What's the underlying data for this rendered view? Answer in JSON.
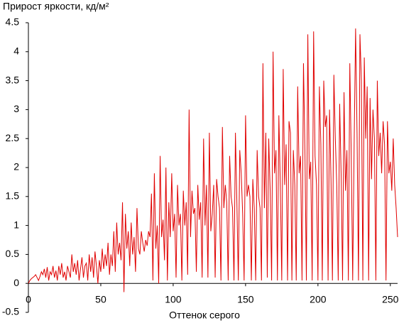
{
  "chart_data": {
    "type": "line",
    "title": "Прирост яркости, кд/м²",
    "x_label": "Оттенок серого",
    "color": "#e00000",
    "x": [
      0,
      1,
      2,
      3,
      4,
      5,
      6,
      7,
      8,
      9,
      10,
      11,
      12,
      13,
      14,
      15,
      16,
      17,
      18,
      19,
      20,
      21,
      22,
      23,
      24,
      25,
      26,
      27,
      28,
      29,
      30,
      31,
      32,
      33,
      34,
      35,
      36,
      37,
      38,
      39,
      40,
      41,
      42,
      43,
      44,
      45,
      46,
      47,
      48,
      49,
      50,
      51,
      52,
      53,
      54,
      55,
      56,
      57,
      58,
      59,
      60,
      61,
      62,
      63,
      64,
      65,
      66,
      67,
      68,
      69,
      70,
      71,
      72,
      73,
      74,
      75,
      76,
      77,
      78,
      79,
      80,
      81,
      82,
      83,
      84,
      85,
      86,
      87,
      88,
      89,
      90,
      91,
      92,
      93,
      94,
      95,
      96,
      97,
      98,
      99,
      100,
      101,
      102,
      103,
      104,
      105,
      106,
      107,
      108,
      109,
      110,
      111,
      112,
      113,
      114,
      115,
      116,
      117,
      118,
      119,
      120,
      121,
      122,
      123,
      124,
      125,
      126,
      127,
      128,
      129,
      130,
      131,
      132,
      133,
      134,
      135,
      136,
      137,
      138,
      139,
      140,
      141,
      142,
      143,
      144,
      145,
      146,
      147,
      148,
      149,
      150,
      151,
      152,
      153,
      154,
      155,
      156,
      157,
      158,
      159,
      160,
      161,
      162,
      163,
      164,
      165,
      166,
      167,
      168,
      169,
      170,
      171,
      172,
      173,
      174,
      175,
      176,
      177,
      178,
      179,
      180,
      181,
      182,
      183,
      184,
      185,
      186,
      187,
      188,
      189,
      190,
      191,
      192,
      193,
      194,
      195,
      196,
      197,
      198,
      199,
      200,
      201,
      202,
      203,
      204,
      205,
      206,
      207,
      208,
      209,
      210,
      211,
      212,
      213,
      214,
      215,
      216,
      217,
      218,
      219,
      220,
      221,
      222,
      223,
      224,
      225,
      226,
      227,
      228,
      229,
      230,
      231,
      232,
      233,
      234,
      235,
      236,
      237,
      238,
      239,
      240,
      241,
      242,
      243,
      244,
      245,
      246,
      247,
      248,
      249,
      250,
      251,
      252,
      253,
      254,
      255
    ],
    "values": [
      0,
      0.05,
      0.08,
      0.1,
      0.12,
      0.15,
      0.1,
      0.05,
      0.12,
      0.2,
      0.15,
      0.25,
      0.1,
      0.28,
      0.05,
      0.2,
      0.15,
      0.3,
      0.1,
      0.22,
      0.05,
      0.3,
      0.15,
      0.35,
      0.1,
      0.2,
      0.05,
      0.3,
      0.2,
      0.1,
      0.5,
      0.2,
      0.35,
      0.15,
      0.4,
      0.05,
      0.25,
      0.45,
      0.1,
      0.3,
      0.35,
      0.05,
      0.5,
      0.2,
      0.45,
      0.1,
      0.55,
      0.3,
      0,
      0.4,
      0.2,
      0.6,
      0.25,
      0.5,
      0.3,
      0.7,
      0.15,
      0.5,
      0.3,
      0.9,
      0.2,
      1.05,
      0.5,
      0.7,
      0.4,
      1.4,
      -0.15,
      1.2,
      0.6,
      0.9,
      0.3,
      1.05,
      0.5,
      0.8,
      0.2,
      1.3,
      0.6,
      0.5,
      0.9,
      0.7,
      0.55,
      0.75,
      0.65,
      0.9,
      0.8,
      1.55,
      0.05,
      1.9,
      0.6,
      1.0,
      0,
      2.2,
      0.8,
      1.1,
      0.4,
      2.0,
      0.05,
      1.4,
      0.8,
      1.9,
      0.9,
      1.2,
      0.1,
      1.7,
      1.0,
      1.2,
      0.05,
      1.6,
      1.0,
      1.4,
      0.15,
      3.0,
      0.8,
      1.6,
      1.2,
      1.3,
      0.2,
      1.7,
      1.1,
      1.4,
      0.1,
      2.5,
      1.0,
      1.7,
      0.1,
      2.6,
      0.9,
      1.2,
      1.7,
      0.1,
      1.8,
      1.5,
      1.3,
      0.05,
      2.7,
      1.3,
      1.7,
      1.4,
      0.05,
      2.2,
      1.5,
      1.3,
      0.05,
      2.6,
      1.4,
      0.05,
      2.3,
      1.9,
      1.2,
      0.05,
      2.9,
      1.5,
      1.7,
      1.5,
      0.05,
      1.8,
      1.3,
      0.05,
      2.3,
      1.5,
      1.3,
      0.05,
      3.8,
      1.3,
      2.6,
      0.1,
      2.5,
      1.6,
      0.05,
      4.0,
      1.9,
      2.3,
      0.05,
      2.9,
      1.7,
      0.05,
      3.7,
      1.7,
      2.4,
      0.05,
      2.8,
      2.6,
      0.05,
      2.3,
      1.7,
      0.05,
      3.4,
      1.9,
      2.2,
      0.05,
      3.8,
      2.3,
      0.05,
      4.3,
      1.8,
      2.1,
      0.05,
      4.35,
      2.2,
      1.7,
      0.05,
      3.4,
      2.4,
      0.05,
      3.5,
      2.7,
      2.9,
      0.05,
      3.0,
      1.8,
      0.05,
      3.6,
      2.5,
      1.7,
      0.05,
      3.1,
      1.9,
      0.05,
      3.3,
      1.6,
      2.3,
      0.05,
      3.8,
      2.2,
      0.05,
      2.4,
      4.4,
      2.6,
      0.05,
      4.3,
      3.5,
      0.05,
      3.9,
      2.5,
      3.4,
      0.05,
      3.2,
      1.8,
      3.0,
      2.5,
      0.05,
      3.5,
      2.2,
      2.6,
      1.9,
      2.8,
      2.4,
      0.05,
      2.8,
      1.9,
      2.1,
      1.6,
      2.5,
      1.7,
      1.3,
      0.8
    ],
    "xlim": [
      0,
      255
    ],
    "xticks": [
      0,
      50,
      100,
      150,
      200,
      250
    ],
    "ylim": [
      -0.5,
      4.5
    ],
    "yticks": [
      -0.5,
      0,
      0.5,
      1,
      1.5,
      2,
      2.5,
      3,
      3.5,
      4,
      4.5
    ]
  }
}
